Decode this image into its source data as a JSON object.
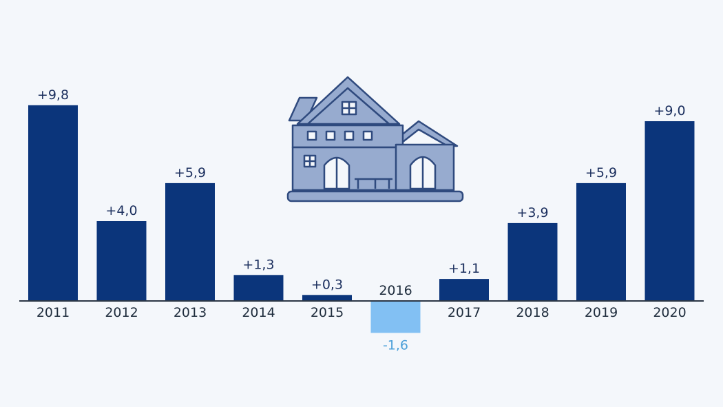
{
  "colors": {
    "background": "#f4f7fb",
    "positive_bar": "#0b357b",
    "negative_bar": "#82c0f3",
    "positive_label": "#1b2f5e",
    "negative_label": "#4a9fd8",
    "axis": "#2b3645",
    "house_fill": "#97abcf",
    "house_stroke": "#2f4a7e"
  },
  "icons": {
    "illustration": "house-icon"
  },
  "chart_data": {
    "type": "bar",
    "title": "",
    "xlabel": "",
    "ylabel": "",
    "categories": [
      "2011",
      "2012",
      "2013",
      "2014",
      "2015",
      "2016",
      "2017",
      "2018",
      "2019",
      "2020"
    ],
    "values": [
      9.8,
      4.0,
      5.9,
      1.3,
      0.3,
      -1.6,
      1.1,
      3.9,
      5.9,
      9.0
    ],
    "value_labels": [
      "+9,8",
      "+4,0",
      "+5,9",
      "+1,3",
      "+0,3",
      "-1,6",
      "+1,1",
      "+3,9",
      "+5,9",
      "+9,0"
    ],
    "ylim": [
      -1.6,
      9.8
    ],
    "grid": false,
    "legend": "none",
    "y_axis_shown": false
  }
}
